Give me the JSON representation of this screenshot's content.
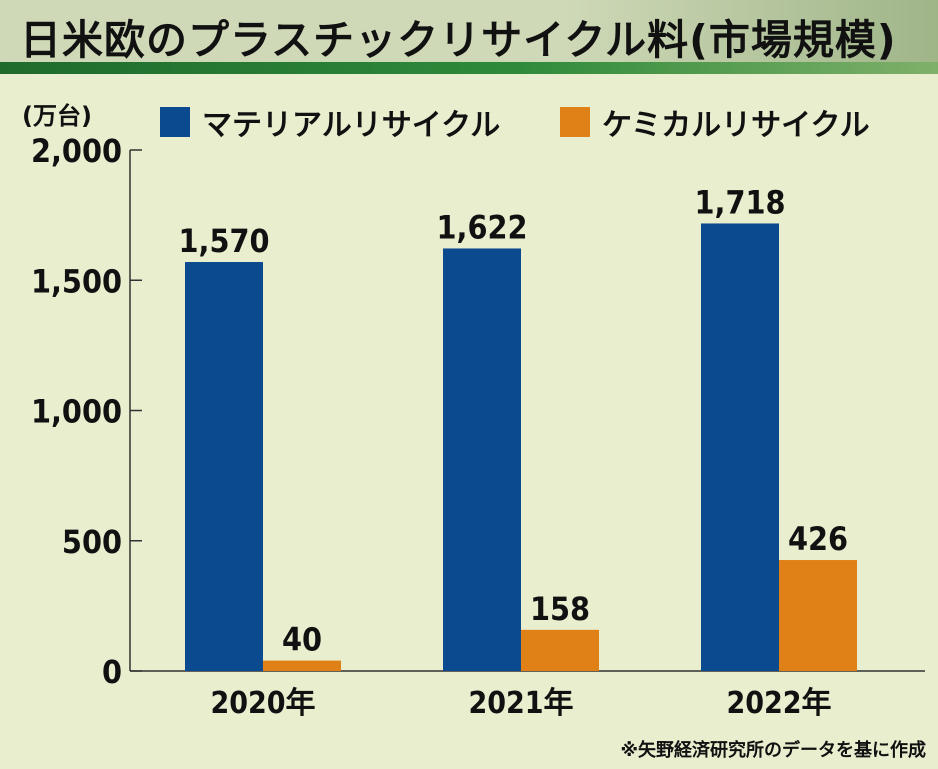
{
  "title": "日米欧のプラスチックリサイクル料(市場規模)",
  "unit": "(万台)",
  "source": "※矢野経済研究所のデータを基に作成",
  "colors": {
    "material": "#0b4a8f",
    "chemical": "#e08118"
  },
  "chart_data": {
    "type": "bar",
    "title": "日米欧のプラスチックリサイクル料(市場規模)",
    "ylabel": "(万台)",
    "xlabel": "",
    "categories": [
      "2020年",
      "2021年",
      "2022年"
    ],
    "series": [
      {
        "name": "マテリアルリサイクル",
        "values": [
          1570,
          1622,
          1718
        ],
        "labels": [
          "1,570",
          "1,622",
          "1,718"
        ]
      },
      {
        "name": "ケミカルリサイクル",
        "values": [
          40,
          158,
          426
        ],
        "labels": [
          "40",
          "158",
          "426"
        ]
      }
    ],
    "ylim": [
      0,
      2000
    ],
    "yticks": [
      0,
      500,
      1000,
      1500,
      2000
    ],
    "ytick_labels": [
      "0",
      "500",
      "1,000",
      "1,500",
      "2,000"
    ],
    "legend": "top"
  }
}
